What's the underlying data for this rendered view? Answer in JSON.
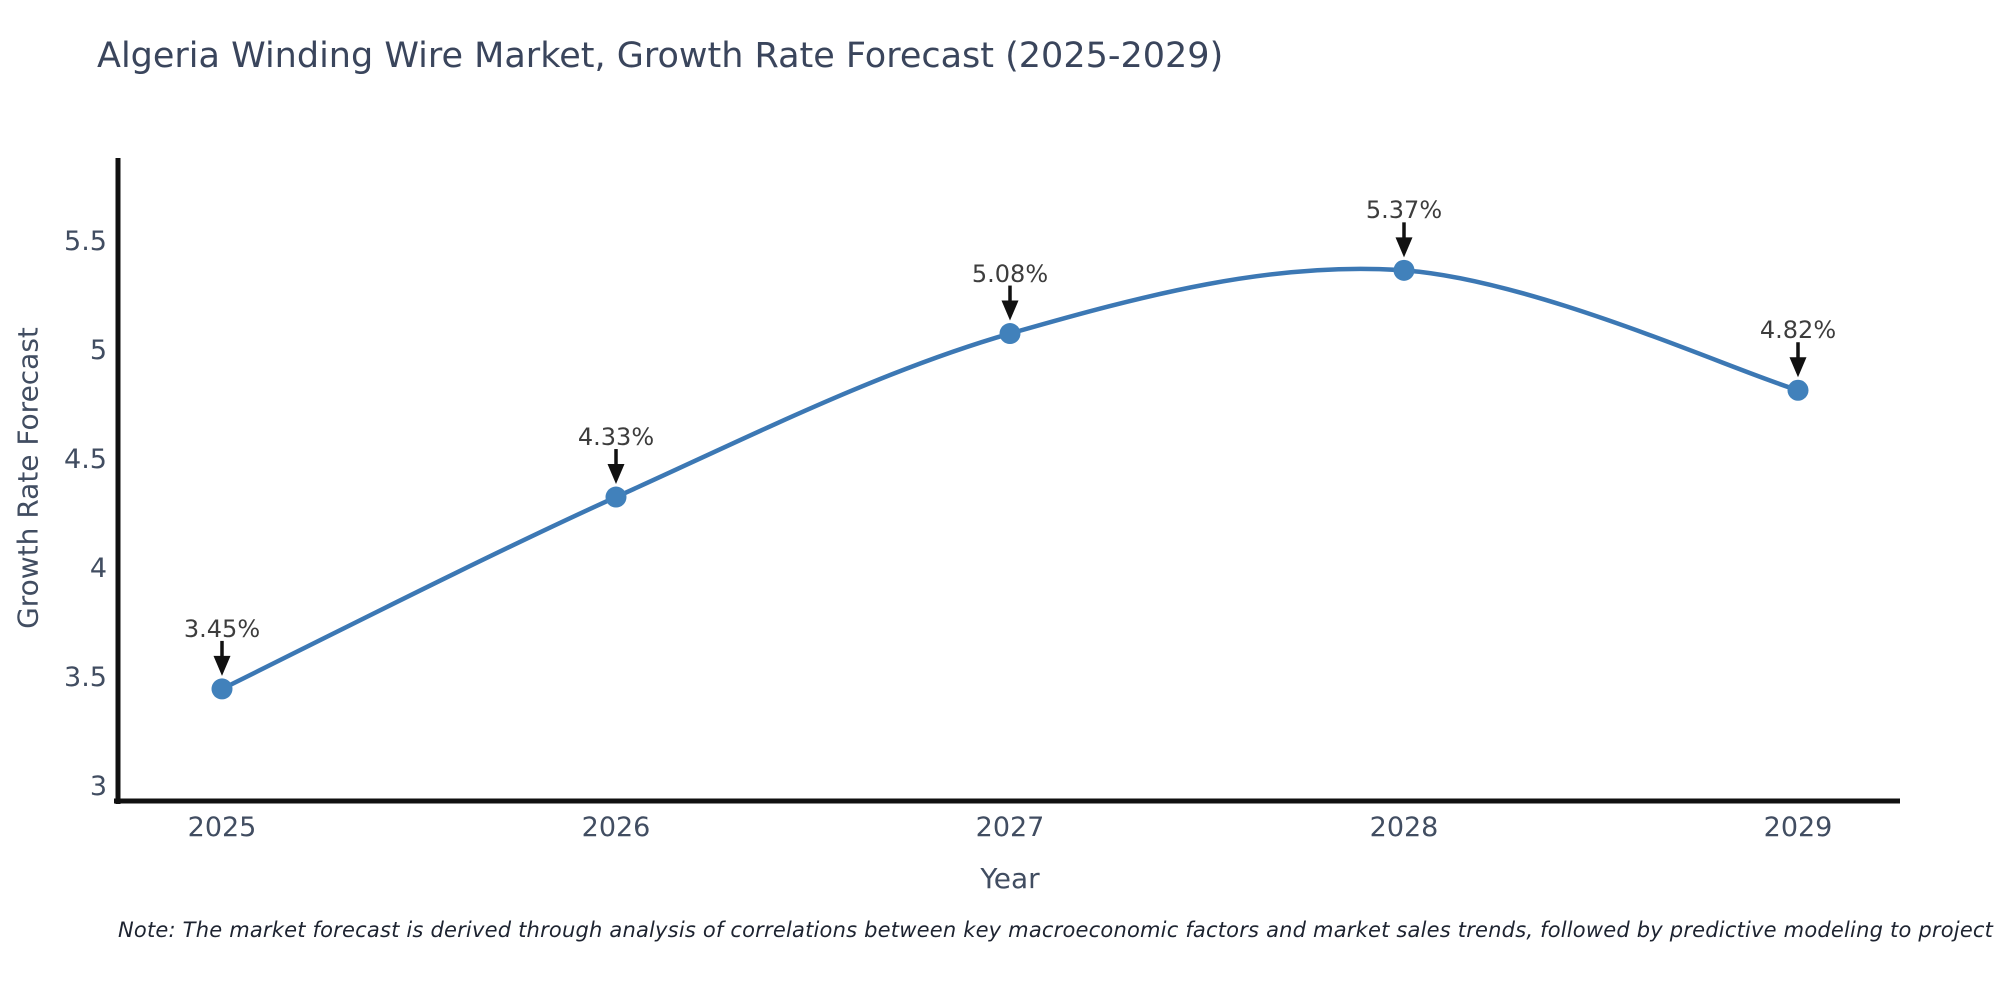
{
  "title": "Algeria Winding Wire Market, Growth Rate Forecast (2025-2029)",
  "y_axis": {
    "label": "Growth Rate Forecast",
    "ticks": [
      "5.5",
      "5",
      "4.5",
      "4",
      "3.5",
      "3"
    ]
  },
  "x_axis": {
    "label": "Year",
    "ticks": [
      "2025",
      "2026",
      "2027",
      "2028",
      "2029"
    ]
  },
  "annotations": [
    "3.45%",
    "4.33%",
    "5.08%",
    "5.37%",
    "4.82%"
  ],
  "note": "Note: The market forecast is derived through analysis of correlations between key macroeconomic factors and market sales trends, followed by predictive modeling to project future sales",
  "colors": {
    "line": "#3c78b4",
    "marker": "#4181bb",
    "arrow": "#111111",
    "spine": "#111111",
    "title_text": "#3a455c",
    "tick_text": "#414d61"
  },
  "chart_data": {
    "type": "line",
    "x": [
      2025,
      2026,
      2027,
      2028,
      2029
    ],
    "series": [
      {
        "name": "Growth Rate Forecast",
        "values": [
          3.45,
          4.33,
          5.08,
          5.37,
          4.82
        ]
      }
    ],
    "point_labels": [
      "3.45%",
      "4.33%",
      "5.08%",
      "5.37%",
      "4.82%"
    ],
    "title": "Algeria Winding Wire Market, Growth Rate Forecast (2025-2029)",
    "xlabel": "Year",
    "ylabel": "Growth Rate Forecast",
    "ylim": [
      2.93,
      5.88
    ],
    "yticks": [
      5.5,
      5,
      4.5,
      4,
      3.5,
      3
    ],
    "grid": false,
    "legend": false,
    "marker": "circle",
    "annotation_arrows": true
  }
}
